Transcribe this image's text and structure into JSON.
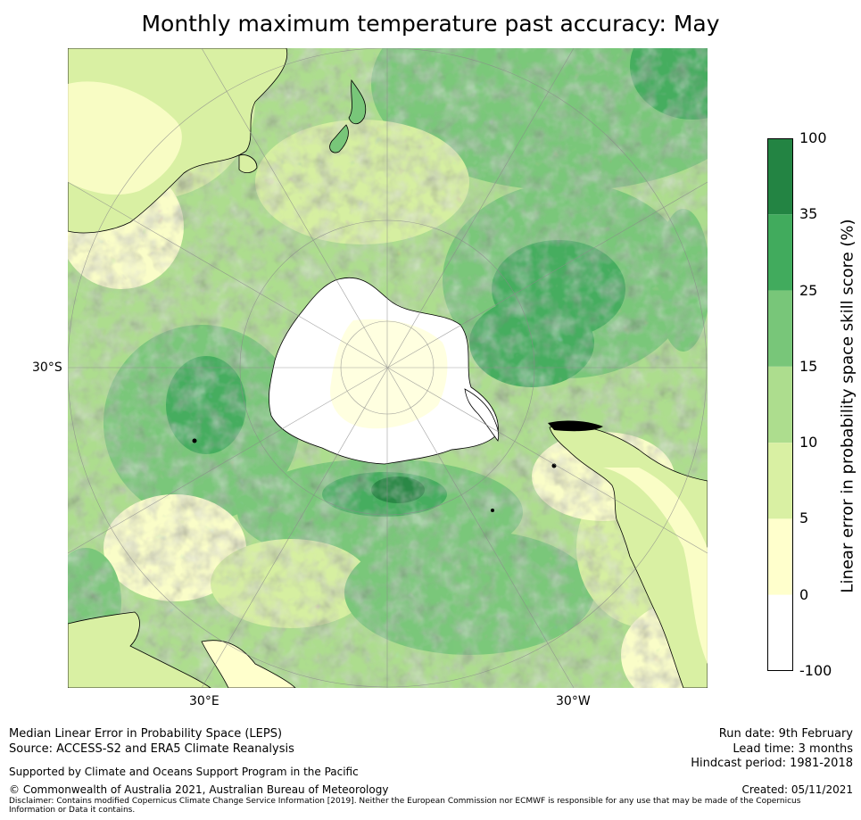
{
  "title": "Monthly maximum temperature past accuracy: May",
  "map": {
    "projection": "south-polar-stereographic",
    "lat_label_left": "30°S",
    "lon_label_left": "30°E",
    "lon_label_right": "30°W",
    "colors": {
      "ocean_base": "#78c67a",
      "coast": "#000000",
      "grid": "#8a8a8a"
    }
  },
  "colorbar": {
    "label": "Linear error in probability space skill score (%)",
    "bins": [
      {
        "from": "-100",
        "to": "0",
        "color": "#ffffff"
      },
      {
        "from": "0",
        "to": "5",
        "color": "#ffffcc"
      },
      {
        "from": "5",
        "to": "10",
        "color": "#d9f0a3"
      },
      {
        "from": "10",
        "to": "15",
        "color": "#addd8e"
      },
      {
        "from": "15",
        "to": "25",
        "color": "#78c679"
      },
      {
        "from": "25",
        "to": "35",
        "color": "#41ab5d"
      },
      {
        "from": "35",
        "to": "100",
        "color": "#238443"
      }
    ],
    "ticks": [
      "100",
      "35",
      "25",
      "15",
      "10",
      "5",
      "0",
      "-100"
    ]
  },
  "footer": {
    "line1": "Median Linear Error in Probability Space (LEPS)",
    "line2": "Source: ACCESS-S2 and ERA5 Climate Reanalysis",
    "support": "Supported by Climate and Oceans Support Program in the Pacific",
    "copyright": "© Commonwealth of Australia 2021, Australian Bureau of Meteorology",
    "disclaimer": "Disclaimer: Contains modified Copernicus Climate Change Service Information [2019]. Neither the European Commission nor ECMWF is responsible for any use that may be made of the Copernicus Information or Data it contains.",
    "run_date": "Run date: 9th February",
    "lead_time": "Lead time: 3 months",
    "hindcast": "Hindcast period: 1981-2018",
    "created": "Created: 05/11/2021"
  }
}
